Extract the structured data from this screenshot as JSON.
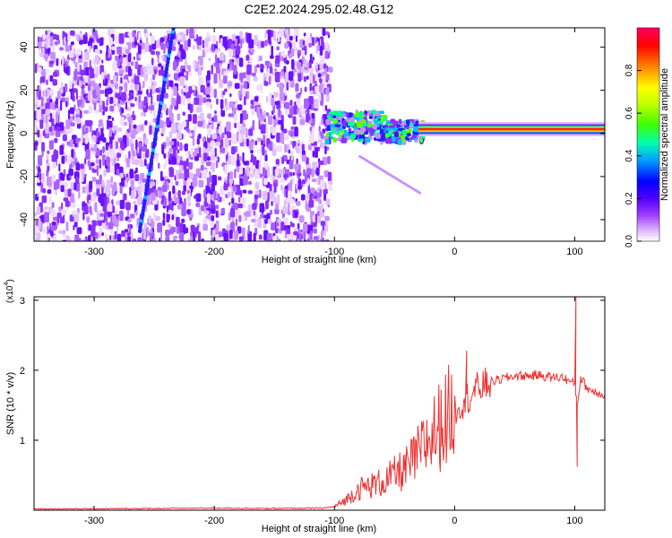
{
  "figure": {
    "title": "C2E2.2024.295.02.48.G12"
  },
  "chart_data": [
    {
      "type": "heatmap",
      "title": "C2E2.2024.295.02.48.G12",
      "xlabel": "Height of straight line (km)",
      "ylabel": "Frequency (Hz)",
      "xlim": [
        -350,
        125
      ],
      "ylim": [
        -50,
        49
      ],
      "x_ticks": [
        -300,
        -200,
        -100,
        0,
        100
      ],
      "y_ticks": [
        -40,
        -20,
        0,
        20,
        40
      ],
      "colorbar": {
        "label": "Normalized spectral amplitude",
        "range": [
          0,
          1
        ],
        "ticks": [
          0.0,
          0.2,
          0.4,
          0.6,
          0.8
        ],
        "colormap": [
          "#ffffff",
          "#c080ff",
          "#7f00ff",
          "#0000ff",
          "#00c0ff",
          "#00ff80",
          "#80ff00",
          "#ffff00",
          "#ff8000",
          "#ff0000",
          "#ff0080"
        ]
      },
      "features": [
        {
          "name": "noise region",
          "x_range": [
            -350,
            -105
          ],
          "amplitude": "0.1-0.3"
        },
        {
          "name": "diagonal streak",
          "points": [
            [
              -262,
              -45
            ],
            [
              -234,
              49
            ]
          ],
          "amplitude": "0.4-0.5"
        },
        {
          "name": "main signal line",
          "x_range": [
            -30,
            125
          ],
          "frequency": 2,
          "amplitude": "0.9-1.0"
        },
        {
          "name": "scattered signal",
          "x_range": [
            -108,
            -28
          ],
          "frequency_range": [
            -3,
            11
          ],
          "amplitude": "0.3-0.6"
        },
        {
          "name": "descending tail",
          "points": [
            [
              -80,
              -10
            ],
            [
              -30,
              -27
            ]
          ],
          "amplitude": "0.1-0.2"
        }
      ]
    },
    {
      "type": "line",
      "xlabel": "Height of straight line (km)",
      "ylabel": "SNR (10 * v/v)",
      "y_multiplier": "(x10^4)",
      "xlim": [
        -350,
        125
      ],
      "ylim": [
        0,
        3.05
      ],
      "x_ticks": [
        -300,
        -200,
        -100,
        0,
        100
      ],
      "y_ticks": [
        1,
        2,
        3
      ],
      "color": "#ee3333",
      "series": [
        {
          "x": [
            -350,
            -300,
            -250,
            -200,
            -150,
            -110,
            -100,
            -90,
            -80,
            -70,
            -60,
            -50,
            -40,
            -30,
            -20,
            -10,
            0,
            10,
            20,
            30,
            40,
            50,
            60,
            70,
            80,
            90,
            95,
            100,
            102,
            105,
            110,
            115,
            120,
            125
          ],
          "y": [
            0.02,
            0.02,
            0.025,
            0.03,
            0.025,
            0.03,
            0.05,
            0.15,
            0.3,
            0.35,
            0.4,
            0.5,
            0.6,
            0.8,
            1.05,
            1.25,
            1.45,
            1.6,
            1.75,
            1.83,
            1.88,
            1.92,
            1.92,
            1.93,
            1.9,
            1.9,
            1.85,
            1.8,
            1.5,
            1.9,
            1.75,
            1.7,
            1.68,
            1.65
          ]
        }
      ],
      "annotations": [
        {
          "x": 10,
          "y": 2.28,
          "label": "spike"
        },
        {
          "x": 101,
          "y": 3.05,
          "label": "spike"
        },
        {
          "x": 102,
          "y": 0.62,
          "label": "dip"
        }
      ]
    }
  ],
  "tick_labels": {
    "top_x": [
      "-300",
      "-200",
      "-100",
      "0",
      "100"
    ],
    "top_y": [
      "-40",
      "-20",
      "0",
      "20",
      "40"
    ],
    "bottom_x": [
      "-300",
      "-200",
      "-100",
      "0",
      "100"
    ],
    "bottom_y": [
      "1",
      "2",
      "3"
    ],
    "colorbar": [
      "0.0",
      "0.2",
      "0.4",
      "0.6",
      "0.8"
    ]
  },
  "exponent_label": "(x10",
  "exponent_power": "4",
  "exponent_close": ")"
}
